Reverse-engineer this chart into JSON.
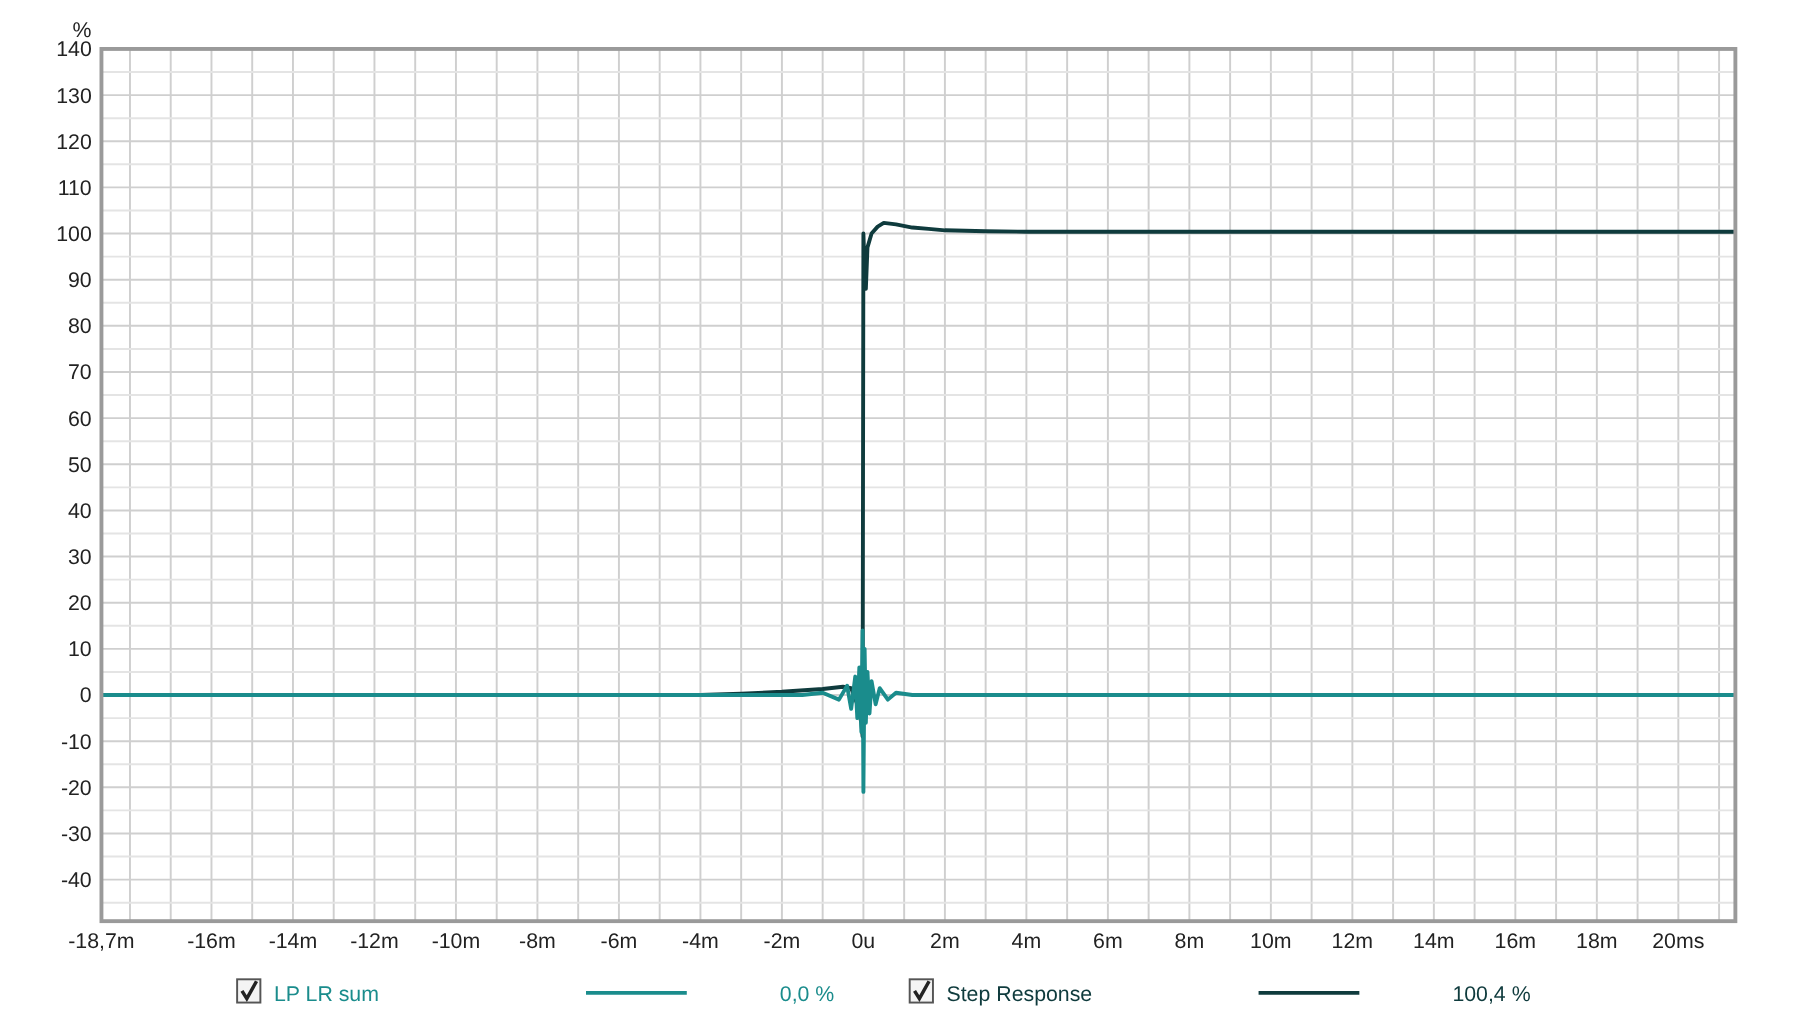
{
  "chart_data": {
    "type": "line",
    "ylabel": "%",
    "xlim": [
      -18.7,
      21.4
    ],
    "ylim": [
      -49,
      140
    ],
    "xticks": [
      {
        "value": -18.7,
        "label": "-18,7m"
      },
      {
        "value": -18,
        "label": null
      },
      {
        "value": -17,
        "label": null
      },
      {
        "value": -16,
        "label": "-16m"
      },
      {
        "value": -15,
        "label": null
      },
      {
        "value": -14,
        "label": "-14m"
      },
      {
        "value": -13,
        "label": null
      },
      {
        "value": -12,
        "label": "-12m"
      },
      {
        "value": -11,
        "label": null
      },
      {
        "value": -10,
        "label": "-10m"
      },
      {
        "value": -9,
        "label": null
      },
      {
        "value": -8,
        "label": "-8m"
      },
      {
        "value": -7,
        "label": null
      },
      {
        "value": -6,
        "label": "-6m"
      },
      {
        "value": -5,
        "label": null
      },
      {
        "value": -4,
        "label": "-4m"
      },
      {
        "value": -3,
        "label": null
      },
      {
        "value": -2,
        "label": "-2m"
      },
      {
        "value": -1,
        "label": null
      },
      {
        "value": 0,
        "label": "0u"
      },
      {
        "value": 1,
        "label": null
      },
      {
        "value": 2,
        "label": "2m"
      },
      {
        "value": 3,
        "label": null
      },
      {
        "value": 4,
        "label": "4m"
      },
      {
        "value": 5,
        "label": null
      },
      {
        "value": 6,
        "label": "6m"
      },
      {
        "value": 7,
        "label": null
      },
      {
        "value": 8,
        "label": "8m"
      },
      {
        "value": 9,
        "label": null
      },
      {
        "value": 10,
        "label": "10m"
      },
      {
        "value": 11,
        "label": null
      },
      {
        "value": 12,
        "label": "12m"
      },
      {
        "value": 13,
        "label": null
      },
      {
        "value": 14,
        "label": "14m"
      },
      {
        "value": 15,
        "label": null
      },
      {
        "value": 16,
        "label": "16m"
      },
      {
        "value": 17,
        "label": null
      },
      {
        "value": 18,
        "label": "18m"
      },
      {
        "value": 19,
        "label": null
      },
      {
        "value": 20,
        "label": "20ms"
      },
      {
        "value": 21,
        "label": null
      }
    ],
    "yticks": [
      {
        "value": -45,
        "label": null
      },
      -40,
      {
        "value": -35,
        "label": null
      },
      -30,
      {
        "value": -25,
        "label": null
      },
      -20,
      {
        "value": -15,
        "label": null
      },
      -10,
      {
        "value": -5,
        "label": null
      },
      0,
      {
        "value": 5,
        "label": null
      },
      10,
      {
        "value": 15,
        "label": null
      },
      20,
      {
        "value": 25,
        "label": null
      },
      30,
      {
        "value": 35,
        "label": null
      },
      40,
      {
        "value": 45,
        "label": null
      },
      50,
      {
        "value": 55,
        "label": null
      },
      60,
      {
        "value": 65,
        "label": null
      },
      70,
      {
        "value": 75,
        "label": null
      },
      80,
      {
        "value": 85,
        "label": null
      },
      90,
      {
        "value": 95,
        "label": null
      },
      100,
      {
        "value": 105,
        "label": null
      },
      110,
      {
        "value": 115,
        "label": null
      },
      120,
      {
        "value": 125,
        "label": null
      },
      130,
      {
        "value": 135,
        "label": null
      },
      140
    ],
    "grid": true,
    "legend": "bottom",
    "annotations": [
      "0,0 %",
      "100,4 %"
    ],
    "series": [
      {
        "name": "LP LR sum",
        "color": "#1a8c8c",
        "x": [
          -18.7,
          -1.5,
          -1,
          -0.6,
          -0.4,
          -0.3,
          -0.2,
          -0.15,
          -0.1,
          -0.05,
          -0.02,
          0,
          0.03,
          0.06,
          0.1,
          0.15,
          0.2,
          0.3,
          0.4,
          0.6,
          0.8,
          1.2,
          21.4
        ],
        "values": [
          0,
          0,
          0.5,
          -1,
          2,
          -3,
          4,
          -5,
          6,
          -8,
          14,
          -21,
          10,
          -6,
          5,
          -4,
          3,
          -2,
          1.5,
          -1,
          0.5,
          0,
          0
        ]
      },
      {
        "name": "Step Response",
        "color": "#0f3b3d",
        "x": [
          -18.7,
          -4,
          -3,
          -2,
          -1,
          -0.5,
          -0.3,
          -0.15,
          -0.05,
          -0.02,
          0,
          0.03,
          0.06,
          0.1,
          0.2,
          0.35,
          0.5,
          0.8,
          1.2,
          1.6,
          2,
          3,
          4,
          21.4
        ],
        "values": [
          0,
          0,
          0.3,
          0.7,
          1.3,
          1.8,
          1.5,
          -2,
          -6,
          -9,
          100,
          92,
          88,
          97,
          100,
          101.5,
          102.3,
          102,
          101.3,
          101,
          100.7,
          100.5,
          100.4,
          100.4
        ]
      }
    ]
  }
}
